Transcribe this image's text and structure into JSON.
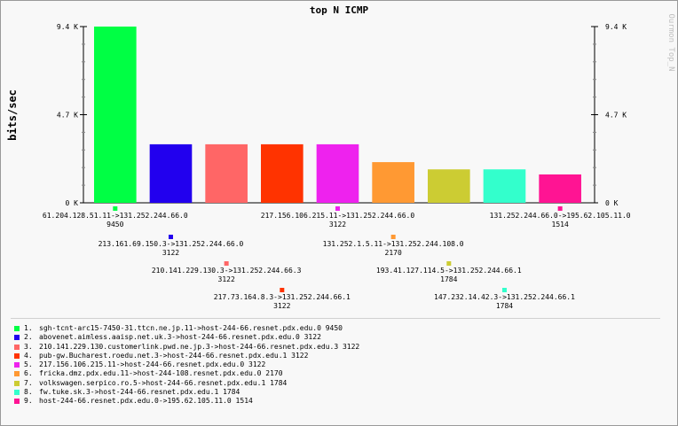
{
  "watermark": "Ourmon Top_N",
  "chart_data": {
    "type": "bar",
    "title": "top N ICMP",
    "ylabel": "bits/sec",
    "xlabel": "",
    "ylim": [
      0,
      9400
    ],
    "y_ticks": [
      {
        "value": 0,
        "label": "0 K"
      },
      {
        "value": 4700,
        "label": "4.7 K"
      },
      {
        "value": 9400,
        "label": "9.4 K"
      }
    ],
    "grid": false,
    "bars": [
      {
        "label": "61.204.128.51.11->131.252.244.66.0",
        "value": 9450,
        "value_label": "9450",
        "color": "#00ff44"
      },
      {
        "label": "213.161.69.150.3->131.252.244.66.0",
        "value": 3122,
        "value_label": "3122",
        "color": "#2200ee"
      },
      {
        "label": "210.141.229.130.3->131.252.244.66.3",
        "value": 3122,
        "value_label": "3122",
        "color": "#ff6666"
      },
      {
        "label": "217.73.164.8.3->131.252.244.66.1",
        "value": 3122,
        "value_label": "3122",
        "color": "#ff3300"
      },
      {
        "label": "217.156.106.215.11->131.252.244.66.0",
        "value": 3122,
        "value_label": "3122",
        "color": "#ee22ee"
      },
      {
        "label": "131.252.1.5.11->131.252.244.108.0",
        "value": 2170,
        "value_label": "2170",
        "color": "#ff9933"
      },
      {
        "label": "193.41.127.114.5->131.252.244.66.1",
        "value": 1784,
        "value_label": "1784",
        "color": "#cccc33"
      },
      {
        "label": "147.232.14.42.3->131.252.244.66.1",
        "value": 1784,
        "value_label": "1784",
        "color": "#33ffcc"
      },
      {
        "label": "131.252.244.66.0->195.62.105.11.0",
        "value": 1514,
        "value_label": "1514",
        "color": "#ff1493"
      }
    ]
  },
  "legend": [
    {
      "num": "1.",
      "text": "sgh-tcnt-arc15-7450-31.ttcn.ne.jp.11->host-244-66.resnet.pdx.edu.0  9450",
      "color": "#00ff44"
    },
    {
      "num": "2.",
      "text": "abovenet.aimless.aaisp.net.uk.3->host-244-66.resnet.pdx.edu.0  3122",
      "color": "#2200ee"
    },
    {
      "num": "3.",
      "text": "210.141.229.130.customerlink.pwd.ne.jp.3->host-244-66.resnet.pdx.edu.3  3122",
      "color": "#ff6666"
    },
    {
      "num": "4.",
      "text": "pub-gw.Bucharest.roedu.net.3->host-244-66.resnet.pdx.edu.1  3122",
      "color": "#ff3300"
    },
    {
      "num": "5.",
      "text": "217.156.106.215.11->host-244-66.resnet.pdx.edu.0  3122",
      "color": "#ee22ee"
    },
    {
      "num": "6.",
      "text": "fricka.dmz.pdx.edu.11->host-244-108.resnet.pdx.edu.0  2170",
      "color": "#ff9933"
    },
    {
      "num": "7.",
      "text": "volkswagen.serpico.ro.5->host-244-66.resnet.pdx.edu.1  1784",
      "color": "#cccc33"
    },
    {
      "num": "8.",
      "text": "fw.tuke.sk.3->host-244-66.resnet.pdx.edu.1  1784",
      "color": "#33ffcc"
    },
    {
      "num": "9.",
      "text": "host-244-66.resnet.pdx.edu.0->195.62.105.11.0  1514",
      "color": "#ff1493"
    }
  ]
}
